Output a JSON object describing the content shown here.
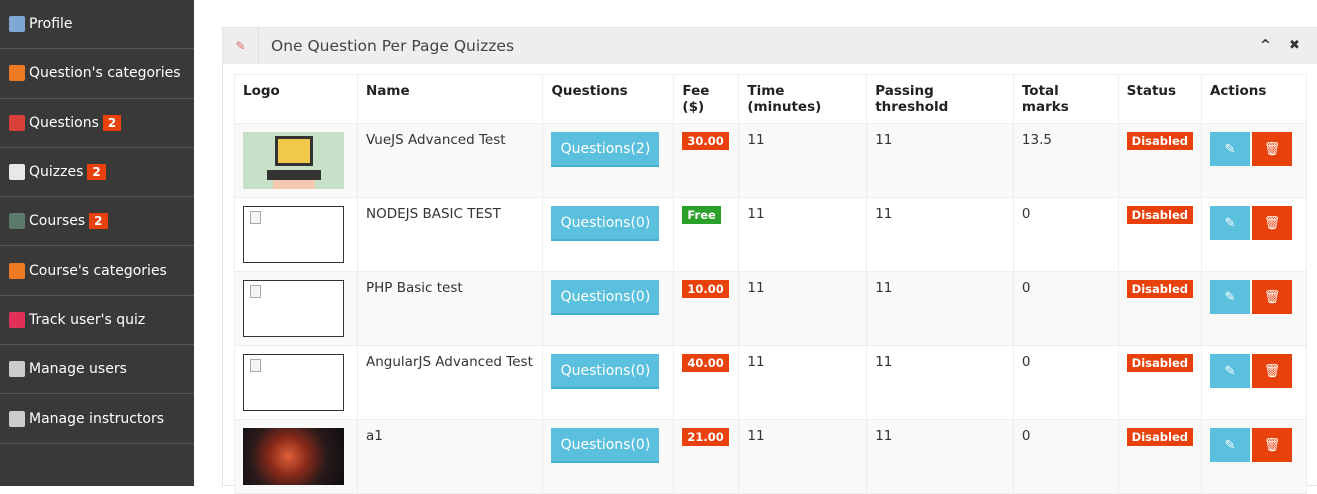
{
  "colors": {
    "sidebar": "#393939",
    "accent_red": "#e8410b",
    "info": "#5bc0de",
    "success": "#2aa12a"
  },
  "sidebar": {
    "items": [
      {
        "label": "Profile",
        "icon": "user-icon",
        "color": "#7fa7d6",
        "badge": null
      },
      {
        "label": "Question's categories",
        "icon": "categories-icon",
        "color": "#f07a22",
        "badge": null
      },
      {
        "label": "Questions",
        "icon": "question-icon",
        "color": "#d9403a",
        "badge": "2"
      },
      {
        "label": "Quizzes",
        "icon": "quiz-icon",
        "color": "#e8e8e8",
        "badge": "2"
      },
      {
        "label": "Courses",
        "icon": "board-icon",
        "color": "#5c7a6a",
        "badge": "2"
      },
      {
        "label": "Course's categories",
        "icon": "categories-icon",
        "color": "#f07a22",
        "badge": null
      },
      {
        "label": "Track user's quiz",
        "icon": "eye-icon",
        "color": "#e0305a",
        "badge": null
      },
      {
        "label": "Manage users",
        "icon": "users-icon",
        "color": "#ccc",
        "badge": null
      },
      {
        "label": "Manage instructors",
        "icon": "instructor-icon",
        "color": "#ccc",
        "badge": null
      }
    ]
  },
  "panel": {
    "title": "One Question Per Page Quizzes",
    "icon": "quiz-icon",
    "collapse_icon": "chevron-up-icon",
    "close_icon": "close-icon"
  },
  "table": {
    "headers": [
      "Logo",
      "Name",
      "Questions",
      "Fee ($)",
      "Time (minutes)",
      "Passing threshold",
      "Total marks",
      "Status",
      "Actions"
    ],
    "rows": [
      {
        "logo": "php-laptop",
        "name": "VueJS Advanced Test",
        "questions": "Questions(2)",
        "fee": "30.00",
        "fee_type": "paid",
        "time": "11",
        "passing": "11",
        "total": "13.5",
        "status": "Disabled"
      },
      {
        "logo": "broken",
        "name": "NODEJS BASIC TEST",
        "questions": "Questions(0)",
        "fee": "Free",
        "fee_type": "free",
        "time": "11",
        "passing": "11",
        "total": "0",
        "status": "Disabled"
      },
      {
        "logo": "broken",
        "name": "PHP Basic test",
        "questions": "Questions(0)",
        "fee": "10.00",
        "fee_type": "paid",
        "time": "11",
        "passing": "11",
        "total": "0",
        "status": "Disabled"
      },
      {
        "logo": "broken",
        "name": "AngularJS Advanced Test",
        "questions": "Questions(0)",
        "fee": "40.00",
        "fee_type": "paid",
        "time": "11",
        "passing": "11",
        "total": "0",
        "status": "Disabled"
      },
      {
        "logo": "artwork",
        "name": "a1",
        "questions": "Questions(0)",
        "fee": "21.00",
        "fee_type": "paid",
        "time": "11",
        "passing": "11",
        "total": "0",
        "status": "Disabled"
      }
    ]
  }
}
